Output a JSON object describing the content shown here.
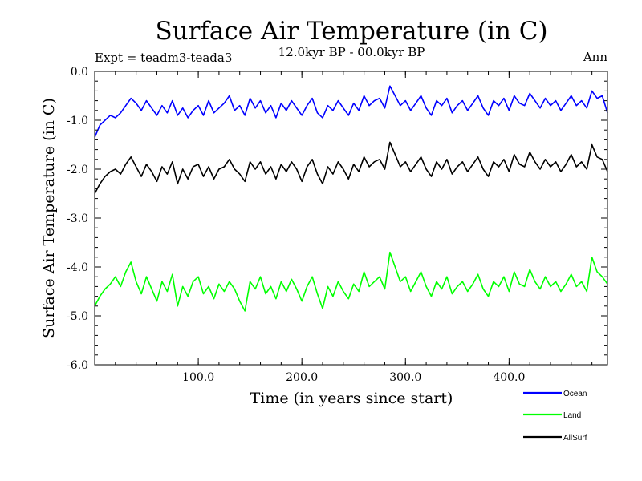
{
  "chart_data": {
    "type": "line",
    "title": "Surface Air Temperature (in C)",
    "subtitle_left": "Expt = teadm3-teada3",
    "subtitle_center": "12.0kyr BP - 00.0kyr BP",
    "subtitle_right": "Ann",
    "xlabel": "Time (in years since start)",
    "ylabel": "Surface Air Temperature (in C)",
    "xlim": [
      0,
      495
    ],
    "ylim": [
      -6.0,
      0.0
    ],
    "x_ticks": [
      {
        "value": 100,
        "label": "100.0"
      },
      {
        "value": 200,
        "label": "200.0"
      },
      {
        "value": 300,
        "label": "300.0"
      },
      {
        "value": 400,
        "label": "400.0"
      }
    ],
    "y_ticks": [
      {
        "value": 0,
        "label": "0.0"
      },
      {
        "value": -1,
        "label": "-1.0"
      },
      {
        "value": -2,
        "label": "-2.0"
      },
      {
        "value": -3,
        "label": "-3.0"
      },
      {
        "value": -4,
        "label": "-4.0"
      },
      {
        "value": -5,
        "label": "-5.0"
      },
      {
        "value": -6,
        "label": "-6.0"
      }
    ],
    "grid": false,
    "legend_position": "bottom-right",
    "series": [
      {
        "name": "Ocean",
        "color": "#0000ff",
        "x": [
          0,
          5,
          10,
          15,
          20,
          25,
          30,
          35,
          40,
          45,
          50,
          55,
          60,
          65,
          70,
          75,
          80,
          85,
          90,
          95,
          100,
          105,
          110,
          115,
          120,
          125,
          130,
          135,
          140,
          145,
          150,
          155,
          160,
          165,
          170,
          175,
          180,
          185,
          190,
          195,
          200,
          205,
          210,
          215,
          220,
          225,
          230,
          235,
          240,
          245,
          250,
          255,
          260,
          265,
          270,
          275,
          280,
          285,
          290,
          295,
          300,
          305,
          310,
          315,
          320,
          325,
          330,
          335,
          340,
          345,
          350,
          355,
          360,
          365,
          370,
          375,
          380,
          385,
          390,
          395,
          400,
          405,
          410,
          415,
          420,
          425,
          430,
          435,
          440,
          445,
          450,
          455,
          460,
          465,
          470,
          475,
          480,
          485,
          490,
          495
        ],
        "values": [
          -1.35,
          -1.1,
          -1.0,
          -0.9,
          -0.95,
          -0.85,
          -0.7,
          -0.55,
          -0.65,
          -0.8,
          -0.6,
          -0.75,
          -0.9,
          -0.7,
          -0.85,
          -0.6,
          -0.9,
          -0.75,
          -0.95,
          -0.8,
          -0.7,
          -0.9,
          -0.6,
          -0.85,
          -0.75,
          -0.65,
          -0.5,
          -0.8,
          -0.7,
          -0.9,
          -0.55,
          -0.75,
          -0.6,
          -0.85,
          -0.7,
          -0.95,
          -0.65,
          -0.8,
          -0.6,
          -0.75,
          -0.9,
          -0.7,
          -0.55,
          -0.85,
          -0.95,
          -0.7,
          -0.8,
          -0.6,
          -0.75,
          -0.9,
          -0.65,
          -0.8,
          -0.5,
          -0.7,
          -0.6,
          -0.55,
          -0.75,
          -0.3,
          -0.5,
          -0.7,
          -0.6,
          -0.8,
          -0.65,
          -0.5,
          -0.75,
          -0.9,
          -0.6,
          -0.7,
          -0.55,
          -0.85,
          -0.7,
          -0.6,
          -0.8,
          -0.65,
          -0.5,
          -0.75,
          -0.9,
          -0.6,
          -0.7,
          -0.55,
          -0.8,
          -0.5,
          -0.65,
          -0.7,
          -0.45,
          -0.6,
          -0.75,
          -0.55,
          -0.7,
          -0.6,
          -0.8,
          -0.65,
          -0.5,
          -0.7,
          -0.6,
          -0.75,
          -0.4,
          -0.55,
          -0.5,
          -0.85
        ]
      },
      {
        "name": "Land",
        "color": "#00ff00",
        "x": [
          0,
          5,
          10,
          15,
          20,
          25,
          30,
          35,
          40,
          45,
          50,
          55,
          60,
          65,
          70,
          75,
          80,
          85,
          90,
          95,
          100,
          105,
          110,
          115,
          120,
          125,
          130,
          135,
          140,
          145,
          150,
          155,
          160,
          165,
          170,
          175,
          180,
          185,
          190,
          195,
          200,
          205,
          210,
          215,
          220,
          225,
          230,
          235,
          240,
          245,
          250,
          255,
          260,
          265,
          270,
          275,
          280,
          285,
          290,
          295,
          300,
          305,
          310,
          315,
          320,
          325,
          330,
          335,
          340,
          345,
          350,
          355,
          360,
          365,
          370,
          375,
          380,
          385,
          390,
          395,
          400,
          405,
          410,
          415,
          420,
          425,
          430,
          435,
          440,
          445,
          450,
          455,
          460,
          465,
          470,
          475,
          480,
          485,
          490,
          495
        ],
        "values": [
          -4.8,
          -4.6,
          -4.45,
          -4.35,
          -4.2,
          -4.4,
          -4.1,
          -3.9,
          -4.3,
          -4.55,
          -4.2,
          -4.45,
          -4.7,
          -4.3,
          -4.5,
          -4.15,
          -4.8,
          -4.4,
          -4.6,
          -4.3,
          -4.2,
          -4.55,
          -4.4,
          -4.65,
          -4.35,
          -4.5,
          -4.3,
          -4.45,
          -4.7,
          -4.9,
          -4.3,
          -4.45,
          -4.2,
          -4.55,
          -4.4,
          -4.65,
          -4.3,
          -4.5,
          -4.25,
          -4.45,
          -4.7,
          -4.4,
          -4.2,
          -4.55,
          -4.85,
          -4.4,
          -4.6,
          -4.3,
          -4.5,
          -4.65,
          -4.35,
          -4.5,
          -4.1,
          -4.4,
          -4.3,
          -4.2,
          -4.45,
          -3.7,
          -4.0,
          -4.3,
          -4.2,
          -4.5,
          -4.3,
          -4.1,
          -4.4,
          -4.6,
          -4.3,
          -4.45,
          -4.2,
          -4.55,
          -4.4,
          -4.3,
          -4.5,
          -4.35,
          -4.15,
          -4.45,
          -4.6,
          -4.3,
          -4.4,
          -4.2,
          -4.5,
          -4.1,
          -4.35,
          -4.4,
          -4.05,
          -4.3,
          -4.45,
          -4.2,
          -4.4,
          -4.3,
          -4.5,
          -4.35,
          -4.15,
          -4.4,
          -4.3,
          -4.5,
          -3.8,
          -4.1,
          -4.2,
          -4.35
        ]
      },
      {
        "name": "AllSurf",
        "color": "#000000",
        "x": [
          0,
          5,
          10,
          15,
          20,
          25,
          30,
          35,
          40,
          45,
          50,
          55,
          60,
          65,
          70,
          75,
          80,
          85,
          90,
          95,
          100,
          105,
          110,
          115,
          120,
          125,
          130,
          135,
          140,
          145,
          150,
          155,
          160,
          165,
          170,
          175,
          180,
          185,
          190,
          195,
          200,
          205,
          210,
          215,
          220,
          225,
          230,
          235,
          240,
          245,
          250,
          255,
          260,
          265,
          270,
          275,
          280,
          285,
          290,
          295,
          300,
          305,
          310,
          315,
          320,
          325,
          330,
          335,
          340,
          345,
          350,
          355,
          360,
          365,
          370,
          375,
          380,
          385,
          390,
          395,
          400,
          405,
          410,
          415,
          420,
          425,
          430,
          435,
          440,
          445,
          450,
          455,
          460,
          465,
          470,
          475,
          480,
          485,
          490,
          495
        ],
        "values": [
          -2.5,
          -2.3,
          -2.15,
          -2.05,
          -2.0,
          -2.1,
          -1.9,
          -1.75,
          -1.95,
          -2.15,
          -1.9,
          -2.05,
          -2.25,
          -1.95,
          -2.1,
          -1.85,
          -2.3,
          -2.0,
          -2.2,
          -1.95,
          -1.9,
          -2.15,
          -1.95,
          -2.2,
          -2.0,
          -1.95,
          -1.8,
          -2.0,
          -2.1,
          -2.25,
          -1.85,
          -2.0,
          -1.85,
          -2.1,
          -1.95,
          -2.2,
          -1.9,
          -2.05,
          -1.85,
          -2.0,
          -2.25,
          -1.95,
          -1.8,
          -2.1,
          -2.3,
          -1.95,
          -2.1,
          -1.85,
          -2.0,
          -2.2,
          -1.9,
          -2.05,
          -1.75,
          -1.95,
          -1.85,
          -1.8,
          -2.0,
          -1.45,
          -1.7,
          -1.95,
          -1.85,
          -2.05,
          -1.9,
          -1.75,
          -2.0,
          -2.15,
          -1.85,
          -2.0,
          -1.8,
          -2.1,
          -1.95,
          -1.85,
          -2.05,
          -1.9,
          -1.75,
          -2.0,
          -2.15,
          -1.85,
          -1.95,
          -1.8,
          -2.05,
          -1.7,
          -1.9,
          -1.95,
          -1.65,
          -1.85,
          -2.0,
          -1.8,
          -1.95,
          -1.85,
          -2.05,
          -1.9,
          -1.7,
          -1.95,
          -1.85,
          -2.0,
          -1.5,
          -1.75,
          -1.8,
          -2.05
        ]
      }
    ]
  }
}
